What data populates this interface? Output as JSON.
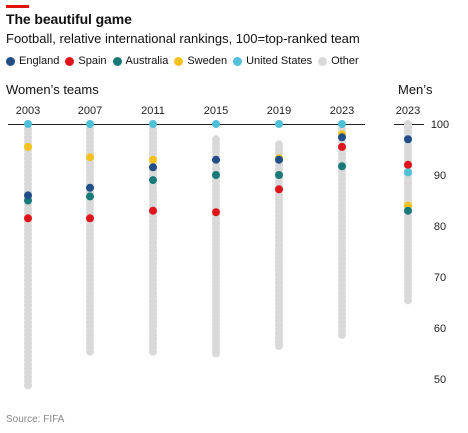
{
  "header": {
    "title": "The beautiful game",
    "subtitle": "Football, relative international rankings, 100=top-ranked team"
  },
  "legend": [
    {
      "label": "England",
      "color": "#1f4e89"
    },
    {
      "label": "Spain",
      "color": "#e0141b"
    },
    {
      "label": "Australia",
      "color": "#1a7a7a"
    },
    {
      "label": "Sweden",
      "color": "#f4c21b"
    },
    {
      "label": "United States",
      "color": "#4fc0d8"
    },
    {
      "label": "Other",
      "color": "#d9d9d9"
    }
  ],
  "panels": {
    "women_label": "Women’s teams",
    "men_label": "Men’s"
  },
  "source": "Source: FIFA",
  "chart_data": {
    "type": "scatter",
    "title": "The beautiful game",
    "subtitle": "Football, relative international rankings, 100=top-ranked team",
    "ylim": [
      45,
      100
    ],
    "yticks": [
      100,
      90,
      80,
      70,
      60,
      50
    ],
    "grid": false,
    "legend_position": "top-left",
    "columns": [
      {
        "panel": "women",
        "year": "2003",
        "other_range": [
          48,
          99
        ],
        "highlights": {
          "United States": 100,
          "Sweden": 95.5,
          "Australia": 85,
          "England": 86,
          "Spain": 81.5
        }
      },
      {
        "panel": "women",
        "year": "2007",
        "other_range": [
          55,
          99
        ],
        "highlights": {
          "United States": 100,
          "Sweden": 93.5,
          "England": 87.5,
          "Australia": 85.8,
          "Spain": 81.5
        }
      },
      {
        "panel": "women",
        "year": "2011",
        "other_range": [
          55,
          99
        ],
        "highlights": {
          "United States": 100,
          "Sweden": 93,
          "England": 91.5,
          "Australia": 89,
          "Spain": 83
        }
      },
      {
        "panel": "women",
        "year": "2015",
        "other_range": [
          55,
          97
        ],
        "highlights": {
          "United States": 100,
          "England": 93,
          "Australia": 90,
          "Spain": 82.7
        }
      },
      {
        "panel": "women",
        "year": "2019",
        "other_range": [
          56,
          96
        ],
        "highlights": {
          "United States": 100,
          "Sweden": 93.3,
          "England": 93,
          "Australia": 90,
          "Spain": 87.2
        }
      },
      {
        "panel": "women",
        "year": "2023",
        "other_range": [
          58,
          99
        ],
        "highlights": {
          "United States": 100,
          "Sweden": 98,
          "England": 97.4,
          "Spain": 95.5,
          "Australia": 91.7
        }
      },
      {
        "panel": "men",
        "year": "2023",
        "other_range": [
          65,
          100
        ],
        "highlights": {
          "England": 97,
          "Spain": 92,
          "United States": 90.5,
          "Sweden": 84,
          "Australia": 83
        }
      }
    ]
  }
}
